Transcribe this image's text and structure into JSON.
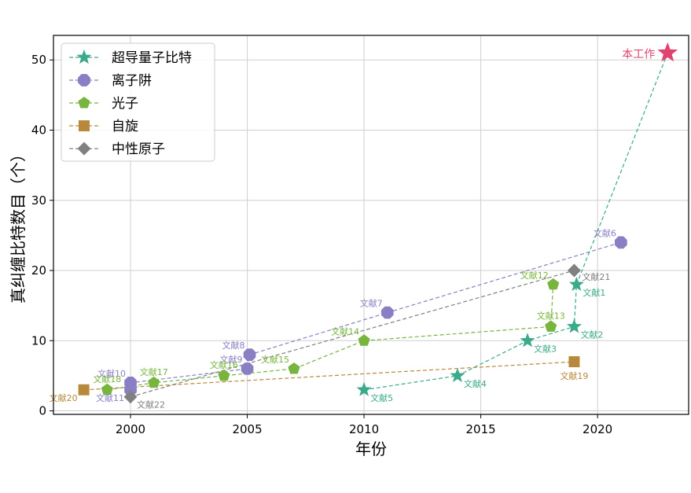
{
  "chart_data": {
    "type": "scatter",
    "xlabel": "年份",
    "ylabel": "真纠缠比特数目（个）",
    "xlim": [
      1996.7,
      2023.9
    ],
    "ylim": [
      -0.5,
      53.5
    ],
    "xticks": [
      2000,
      2005,
      2010,
      2015,
      2020
    ],
    "yticks": [
      0,
      10,
      20,
      30,
      40,
      50
    ],
    "grid": true,
    "legend_position": "top-left",
    "series": [
      {
        "name": "超导量子比特",
        "color": "#3aaa8a",
        "marker": "star",
        "points": [
          {
            "x": 2010,
            "y": 3,
            "label": "文献5",
            "lpos": "br"
          },
          {
            "x": 2014,
            "y": 5,
            "label": "文献4",
            "lpos": "br"
          },
          {
            "x": 2017,
            "y": 10,
            "label": "文献3",
            "lpos": "br"
          },
          {
            "x": 2019,
            "y": 12,
            "label": "文献2",
            "lpos": "br"
          },
          {
            "x": 2019.1,
            "y": 18,
            "label": "文献1",
            "lpos": "br"
          }
        ]
      },
      {
        "name": "离子阱",
        "color": "#8a7fc4",
        "marker": "octagon",
        "points": [
          {
            "x": 2000,
            "y": 4,
            "label": "文献10",
            "lpos": "tl"
          },
          {
            "x": 2000,
            "y": 3,
            "label": "文献11",
            "lpos": "bl"
          },
          {
            "x": 2005,
            "y": 6,
            "label": "文献9",
            "lpos": "tl"
          },
          {
            "x": 2005.1,
            "y": 8,
            "label": "文献8",
            "lpos": "tl"
          },
          {
            "x": 2011,
            "y": 14,
            "label": "文献7",
            "lpos": "tl"
          },
          {
            "x": 2021,
            "y": 24,
            "label": "文献6",
            "lpos": "tl"
          }
        ]
      },
      {
        "name": "光子",
        "color": "#78b53e",
        "marker": "pentagon",
        "points": [
          {
            "x": 1999,
            "y": 3,
            "label": "文献18",
            "lpos": "t"
          },
          {
            "x": 2001,
            "y": 4,
            "label": "文献17",
            "lpos": "t"
          },
          {
            "x": 2004,
            "y": 5,
            "label": "文献16",
            "lpos": "t"
          },
          {
            "x": 2007,
            "y": 6,
            "label": "文献15",
            "lpos": "tl"
          },
          {
            "x": 2010,
            "y": 10,
            "label": "文献14",
            "lpos": "tl"
          },
          {
            "x": 2018,
            "y": 12,
            "label": "文献13",
            "lpos": "t"
          },
          {
            "x": 2018.1,
            "y": 18,
            "label": "文献12",
            "lpos": "tl"
          }
        ]
      },
      {
        "name": "自旋",
        "color": "#b8893a",
        "marker": "square",
        "points": [
          {
            "x": 1998,
            "y": 3,
            "label": "文献20",
            "lpos": "bl"
          },
          {
            "x": 2019,
            "y": 7,
            "label": "文献19",
            "lpos": "b"
          }
        ]
      },
      {
        "name": "中性原子",
        "color": "#808080",
        "marker": "diamond",
        "points": [
          {
            "x": 2000,
            "y": 2,
            "label": "文献22",
            "lpos": "br"
          },
          {
            "x": 2019,
            "y": 20,
            "label": "文献21",
            "lpos": "r"
          }
        ]
      }
    ],
    "extra_lines": [
      {
        "series": 0,
        "from": [
          2019.1,
          18
        ],
        "to": [
          2023,
          51
        ]
      }
    ],
    "highlight": {
      "x": 2023,
      "y": 51,
      "label": "本工作",
      "color": "#e0436e",
      "marker": "star"
    }
  }
}
